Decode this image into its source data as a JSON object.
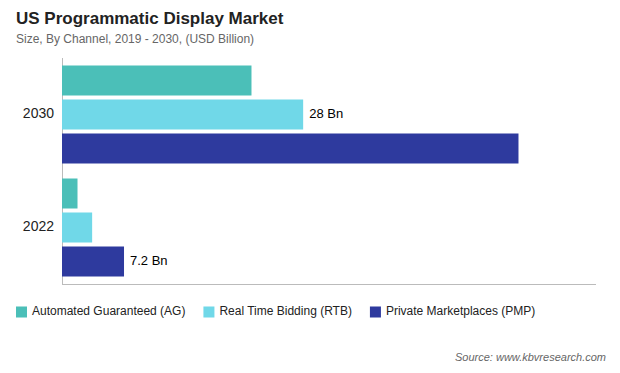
{
  "chart_data": {
    "type": "bar",
    "orientation": "horizontal",
    "title": "US Programmatic Display Market",
    "subtitle": "Size, By Channel, 2019 - 2030, (USD Billion)",
    "source": "Source: www.kbvresearch.com",
    "categories": [
      "2030",
      "2022"
    ],
    "series": [
      {
        "name": "Automated Guaranteed (AG)",
        "color": "#4bbfb8",
        "values": [
          22.0,
          1.8
        ]
      },
      {
        "name": "Real Time Bidding (RTB)",
        "color": "#70d8e8",
        "values": [
          28.0,
          3.5
        ]
      },
      {
        "name": "Private Marketplaces (PMP)",
        "color": "#2e3a9e",
        "values": [
          53.0,
          7.2
        ]
      }
    ],
    "annotations": [
      {
        "text": "28 Bn",
        "category": "2030",
        "series": "Real Time Bidding (RTB)",
        "value": 28.0
      },
      {
        "text": "7.2 Bn",
        "category": "2022",
        "series": "Private Marketplaces (PMP)",
        "value": 7.2
      }
    ],
    "xlim": [
      0,
      62
    ],
    "tick_labels": "y",
    "grid": false,
    "legend": "bottom"
  }
}
